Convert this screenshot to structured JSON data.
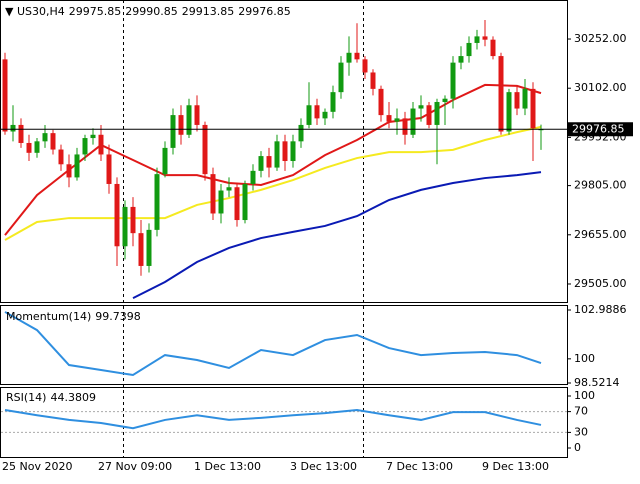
{
  "chart_data": [
    {
      "type": "candlestick",
      "title": "US30,H4",
      "categories": [
        "25 Nov 2020",
        null,
        null,
        null,
        null,
        null,
        null,
        null,
        null,
        null,
        null,
        null,
        "27 Nov 09:00",
        null,
        null,
        null,
        null,
        null,
        null,
        null,
        null,
        null,
        null,
        null,
        "1 Dec 13:00",
        null,
        null,
        null,
        null,
        null,
        null,
        null,
        null,
        null,
        null,
        null,
        "3 Dec 13:00",
        null,
        null,
        null,
        null,
        null,
        null,
        null,
        null,
        null,
        null,
        null,
        "7 Dec 13:00",
        null,
        null,
        null,
        null,
        null,
        null,
        null,
        null,
        null,
        null,
        null,
        "9 Dec 13:00",
        null,
        null,
        null,
        null,
        null,
        null,
        null
      ],
      "open": [
        30190,
        29970,
        29990,
        29935,
        29905,
        29940,
        29965,
        29915,
        29870,
        29830,
        29900,
        29950,
        29960,
        29900,
        29810,
        29620,
        29740,
        29660,
        29560,
        29670,
        29840,
        29920,
        30020,
        29960,
        30050,
        29990,
        29840,
        29720,
        29790,
        29800,
        29700,
        29810,
        29850,
        29895,
        29860,
        29940,
        29880,
        29940,
        29990,
        30050,
        30010,
        30030,
        30090,
        30180,
        30210,
        30190,
        30150,
        30100,
        30020,
        30000,
        30010,
        29960,
        30040,
        30050,
        29990,
        30060,
        30070,
        30180,
        30200,
        30240,
        30260,
        30250,
        30200,
        29970,
        30090,
        30040,
        30100,
        29975.85
      ],
      "high": [
        30210,
        30050,
        30010,
        29960,
        29950,
        29990,
        29975,
        29930,
        29900,
        29920,
        29960,
        29980,
        29990,
        29930,
        29830,
        29760,
        29770,
        29700,
        29690,
        29860,
        29940,
        30040,
        30050,
        30070,
        30080,
        30000,
        29860,
        29810,
        29830,
        29810,
        29820,
        29870,
        29910,
        29920,
        29960,
        29960,
        29960,
        30010,
        30120,
        30070,
        30040,
        30110,
        30200,
        30260,
        30300,
        30200,
        30160,
        30110,
        30060,
        30040,
        30030,
        30060,
        30080,
        30060,
        30070,
        30080,
        30200,
        30230,
        30260,
        30280,
        30310,
        30260,
        30210,
        30100,
        30110,
        30130,
        30120,
        29990.85
      ],
      "low": [
        29960,
        29940,
        29920,
        29880,
        29890,
        29920,
        29900,
        29850,
        29800,
        29820,
        29880,
        29930,
        29880,
        29780,
        29560,
        29580,
        29620,
        29530,
        29540,
        29650,
        29830,
        29900,
        29930,
        29950,
        29970,
        29820,
        29700,
        29690,
        29770,
        29680,
        29690,
        29790,
        29830,
        29830,
        29850,
        29850,
        29860,
        29920,
        29980,
        29990,
        29990,
        30010,
        30070,
        30140,
        30180,
        30130,
        30080,
        30000,
        29980,
        29960,
        29930,
        29950,
        30000,
        29980,
        29870,
        29990,
        30040,
        30160,
        30180,
        30220,
        30230,
        30190,
        29960,
        29960,
        30020,
        30020,
        29880,
        29913.85
      ],
      "close": [
        29970,
        29990,
        29935,
        29905,
        29940,
        29965,
        29915,
        29870,
        29830,
        29900,
        29950,
        29960,
        29900,
        29810,
        29620,
        29740,
        29660,
        29560,
        29670,
        29840,
        29920,
        30020,
        29960,
        30050,
        29990,
        29840,
        29720,
        29790,
        29800,
        29700,
        29810,
        29850,
        29895,
        29860,
        29940,
        29880,
        29940,
        29990,
        30050,
        30010,
        30030,
        30090,
        30180,
        30210,
        30190,
        30150,
        30100,
        30020,
        30000,
        30010,
        29960,
        30040,
        30050,
        29990,
        30060,
        30070,
        30180,
        30200,
        30240,
        30260,
        30250,
        30200,
        29970,
        30090,
        30040,
        30100,
        29980,
        29976.85
      ],
      "up_color": "#119a11",
      "down_color": "#e01818",
      "lines": [
        {
          "color": "#e01818",
          "x": [
            0,
            4,
            8,
            12,
            16,
            20,
            24,
            28,
            32,
            36,
            40,
            44,
            48,
            52,
            56,
            60,
            64,
            67
          ],
          "values": [
            29654,
            29776,
            29853,
            29929,
            29883,
            29837,
            29837,
            29813,
            29807,
            29837,
            29898,
            29944,
            29999,
            30011,
            30066,
            30112,
            30109,
            30087
          ]
        },
        {
          "color": "#f5ea20",
          "x": [
            0,
            4,
            8,
            12,
            16,
            20,
            24,
            28,
            32,
            36,
            40,
            44,
            48,
            52,
            56,
            60,
            64,
            67
          ],
          "values": [
            29639,
            29694,
            29706,
            29706,
            29706,
            29706,
            29746,
            29767,
            29792,
            29822,
            29859,
            29889,
            29907,
            29907,
            29914,
            29944,
            29968,
            29984
          ]
        },
        {
          "color": "#0a1ab4",
          "x": [
            16,
            20,
            24,
            28,
            32,
            36,
            40,
            44,
            48,
            52,
            56,
            60,
            64,
            67
          ],
          "values": [
            29462,
            29511,
            29572,
            29615,
            29645,
            29664,
            29682,
            29712,
            29761,
            29792,
            29813,
            29828,
            29837,
            29846
          ]
        }
      ],
      "ylim": [
        29447,
        30371
      ],
      "yticks": [
        {
          "value": 29505,
          "label": "29505.00"
        },
        {
          "value": 29655,
          "label": "29655.00"
        },
        {
          "value": 29805,
          "label": "29805.00"
        },
        {
          "value": 29952,
          "label": "29952.00"
        },
        {
          "value": 30102,
          "label": "30102.00"
        },
        {
          "value": 30252,
          "label": "30252.00"
        }
      ]
    },
    {
      "type": "line",
      "title": "Momentum(14)",
      "color": "#2f8fe0",
      "x": [
        0,
        4,
        8,
        12,
        16,
        20,
        24,
        28,
        32,
        36,
        40,
        44,
        48,
        52,
        56,
        60,
        64,
        67
      ],
      "values": [
        102.87,
        101.76,
        99.62,
        99.32,
        99.01,
        100.23,
        99.93,
        99.44,
        100.54,
        100.23,
        101.15,
        101.46,
        100.66,
        100.23,
        100.36,
        100.42,
        100.23,
        99.7398
      ],
      "ylim": [
        98.5214,
        102.9886
      ],
      "yticks": [
        98.5214,
        100,
        102.9886
      ]
    },
    {
      "type": "line",
      "title": "RSI(14)",
      "color": "#2f8fe0",
      "x": [
        0,
        4,
        8,
        12,
        16,
        20,
        24,
        28,
        32,
        36,
        40,
        44,
        48,
        52,
        56,
        60,
        64,
        67
      ],
      "values": [
        73,
        63,
        54,
        48,
        38,
        54,
        63,
        54,
        58,
        63,
        67,
        73,
        63,
        54,
        69,
        69,
        54,
        44.3809
      ],
      "levels": [
        30,
        70
      ],
      "ylim": [
        0,
        100
      ],
      "yticks": [
        0,
        30,
        70,
        100
      ]
    }
  ]
}
